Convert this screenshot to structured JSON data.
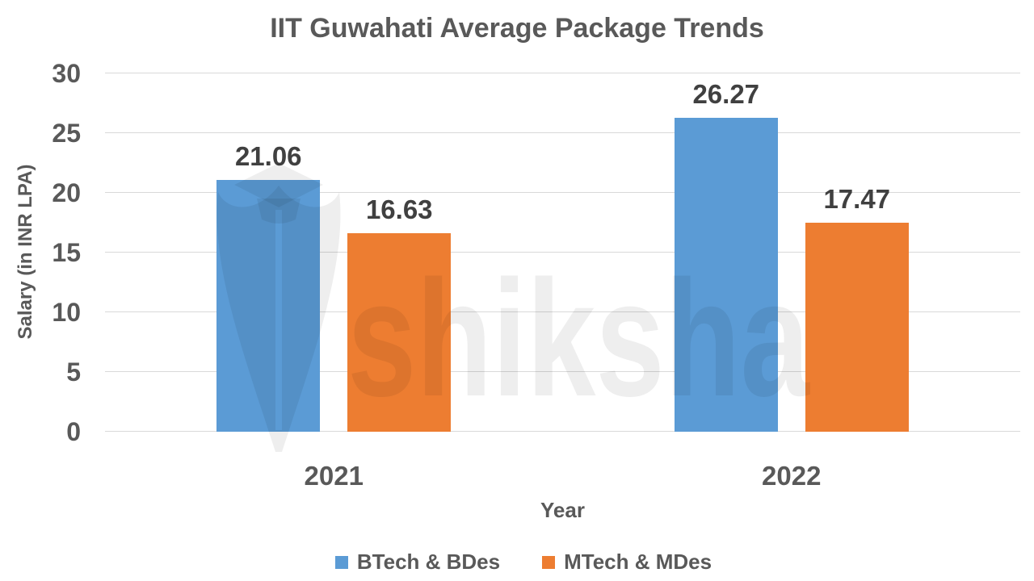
{
  "chart_data": {
    "type": "bar",
    "title": "IIT Guwahati Average Package Trends",
    "xlabel": "Year",
    "ylabel": "Salary (in INR LPA)",
    "categories": [
      "2021",
      "2022"
    ],
    "series": [
      {
        "name": "BTech & BDes",
        "color": "#5B9BD5",
        "values": [
          21.06,
          26.27
        ]
      },
      {
        "name": "MTech & MDes",
        "color": "#ED7D31",
        "values": [
          16.63,
          17.47
        ]
      }
    ],
    "data_labels": [
      [
        "21.06",
        "26.27"
      ],
      [
        "16.63",
        "17.47"
      ]
    ],
    "ylim": [
      0,
      30
    ],
    "yticks": [
      0,
      5,
      10,
      15,
      20,
      25,
      30
    ],
    "grid": true,
    "legend_position": "bottom"
  },
  "watermark": {
    "text": "shiksha",
    "icon": "graduation-cap-quill-icon"
  },
  "colors": {
    "series_blue": "#5B9BD5",
    "series_orange": "#ED7D31",
    "gridline": "#D9D9D9",
    "axis_text": "#595959",
    "data_label_text": "#404040",
    "background": "#FFFFFF"
  }
}
